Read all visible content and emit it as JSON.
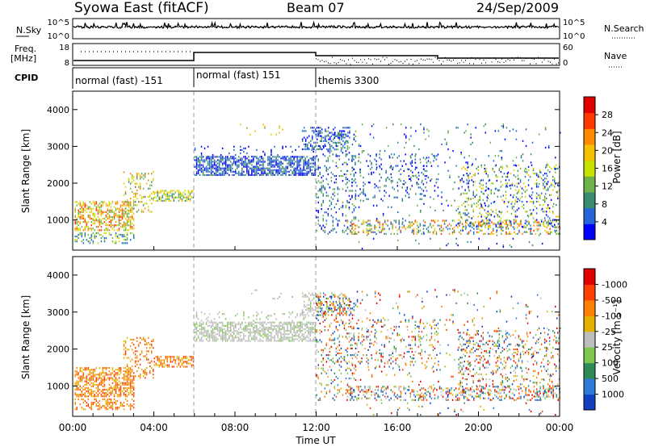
{
  "header": {
    "station": "Syowa East (fitACF)",
    "beam": "Beam 07",
    "date": "24/Sep/2009"
  },
  "panels": {
    "nsky": {
      "left_label": "N.Sky",
      "right_label": "N.Search",
      "left_ticks": [
        "10^5",
        "10^0"
      ],
      "right_ticks": [
        "10^5",
        "10^0"
      ]
    },
    "freq": {
      "left_label_1": "Freq.",
      "left_label_2": "[MHz]",
      "right_label": "Nave",
      "left_ticks": [
        "18",
        "8"
      ],
      "right_ticks": [
        "60",
        "0"
      ]
    },
    "cpid": {
      "label": "CPID",
      "segments": [
        {
          "label": "normal (fast) -151",
          "start_h": 0,
          "end_h": 6
        },
        {
          "label": "normal (fast) 151",
          "start_h": 6,
          "end_h": 12
        },
        {
          "label": "themis 3300",
          "start_h": 12,
          "end_h": 24
        }
      ]
    }
  },
  "chart_data": [
    {
      "type": "heatmap",
      "name": "power",
      "xlabel": "",
      "ylabel": "Slant Range [km]",
      "xlim": [
        0,
        24
      ],
      "ylim": [
        180,
        4500
      ],
      "yticks": [
        1000,
        2000,
        3000,
        4000
      ],
      "colorbar": {
        "label": "Power [dB]",
        "ticks": [
          "4",
          "8",
          "12",
          "16",
          "20",
          "24",
          "28"
        ],
        "colors": [
          "#0000ff",
          "#2466d9",
          "#3a8c6e",
          "#6db24a",
          "#c8e000",
          "#f5c000",
          "#ff8a00",
          "#ff3a00",
          "#e00000"
        ]
      }
    },
    {
      "type": "heatmap",
      "name": "velocity",
      "xlabel": "Time UT",
      "ylabel": "Slant Range [km]",
      "xlim": [
        0,
        24
      ],
      "ylim": [
        180,
        4500
      ],
      "yticks": [
        1000,
        2000,
        3000,
        4000
      ],
      "xticks": [
        "00:00",
        "04:00",
        "08:00",
        "12:00",
        "16:00",
        "20:00",
        "00:00"
      ],
      "colorbar": {
        "label": "Velocity [m s⁻¹]",
        "ticks": [
          "1000",
          "500",
          "100",
          "25",
          "-25",
          "-100",
          "-500",
          "-1000"
        ],
        "colors": [
          "#1040c0",
          "#2f7ad8",
          "#2e8b57",
          "#7ec850",
          "#bdbdbd",
          "#e6b000",
          "#ff8000",
          "#ff4000",
          "#e00000"
        ]
      }
    }
  ]
}
